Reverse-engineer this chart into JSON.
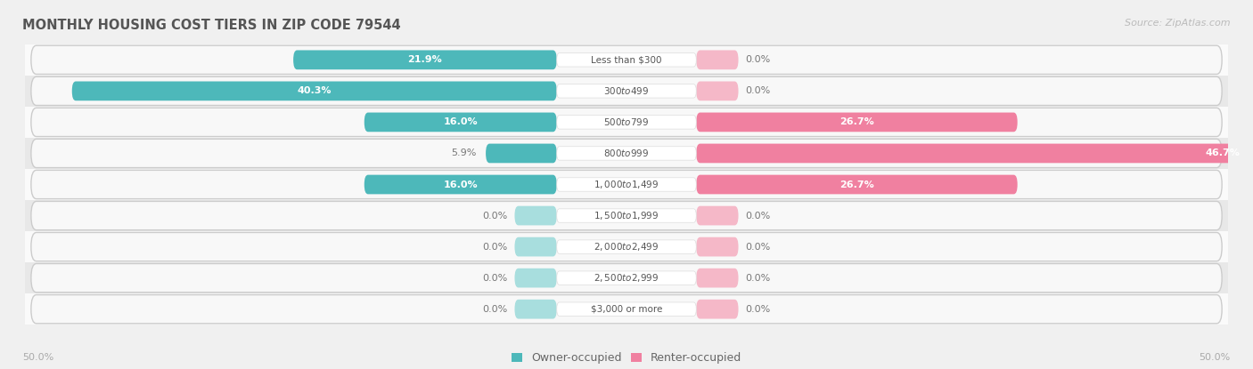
{
  "title": "MONTHLY HOUSING COST TIERS IN ZIP CODE 79544",
  "source": "Source: ZipAtlas.com",
  "categories": [
    "Less than $300",
    "$300 to $499",
    "$500 to $799",
    "$800 to $999",
    "$1,000 to $1,499",
    "$1,500 to $1,999",
    "$2,000 to $2,499",
    "$2,500 to $2,999",
    "$3,000 or more"
  ],
  "owner_values": [
    21.9,
    40.3,
    16.0,
    5.9,
    16.0,
    0.0,
    0.0,
    0.0,
    0.0
  ],
  "renter_values": [
    0.0,
    0.0,
    26.7,
    46.7,
    26.7,
    0.0,
    0.0,
    0.0,
    0.0
  ],
  "owner_color": "#4db8ba",
  "renter_color": "#f080a0",
  "owner_color_light": "#a8dede",
  "renter_color_light": "#f5b8c8",
  "axis_max": 50.0,
  "zero_stub": 3.5,
  "bg_color": "#f0f0f0",
  "row_color_light": "#fafafa",
  "row_color_dark": "#e8e8e8",
  "center_label_bg": "#ffffff",
  "title_color": "#555555",
  "source_color": "#bbbbbb",
  "label_color_inside": "#ffffff",
  "label_color_outside": "#777777",
  "footer_label": "50.0%",
  "legend_owner": "Owner-occupied",
  "legend_renter": "Renter-occupied",
  "label_threshold": 8.0
}
